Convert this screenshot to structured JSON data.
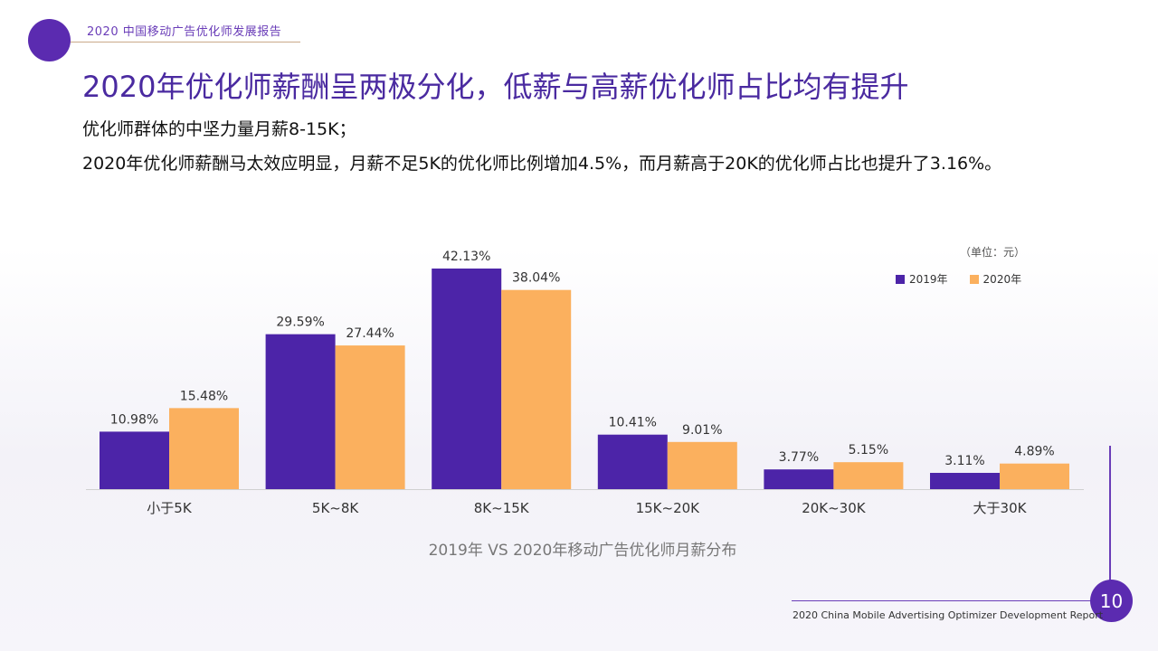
{
  "header": {
    "report_label": "2020 中国移动广告优化师发展报告",
    "title": "2020年优化师薪酬呈两极分化，低薪与高薪优化师占比均有提升",
    "subtitle_1": "优化师群体的中坚力量月薪8-15K；",
    "subtitle_2": "2020年优化师薪酬马太效应明显，月薪不足5K的优化师比例增加4.5%，而月薪高于20K的优化师占比也提升了3.16%。"
  },
  "chart_data": {
    "type": "bar",
    "title": "2019年 VS 2020年移动广告优化师月薪分布",
    "unit_note": "（单位：元）",
    "categories": [
      "小于5K",
      "5K~8K",
      "8K~15K",
      "15K~20K",
      "20K~30K",
      "大于30K"
    ],
    "series": [
      {
        "name": "2019年",
        "color": "#4c24a8",
        "values": [
          10.98,
          29.59,
          42.13,
          10.41,
          3.77,
          3.11
        ],
        "labels": [
          "10.98%",
          "29.59%",
          "42.13%",
          "10.41%",
          "3.77%",
          "3.11%"
        ]
      },
      {
        "name": "2020年",
        "color": "#fbb05e",
        "values": [
          15.48,
          27.44,
          38.04,
          9.01,
          5.15,
          4.89
        ],
        "labels": [
          "15.48%",
          "27.44%",
          "38.04%",
          "9.01%",
          "5.15%",
          "4.89%"
        ]
      }
    ],
    "ylim": [
      0,
      42.13
    ],
    "legend_position": "top-right",
    "grid": false
  },
  "footer": {
    "page_number": "10",
    "report_english": "2020 China Mobile Advertising Optimizer Development Report"
  }
}
